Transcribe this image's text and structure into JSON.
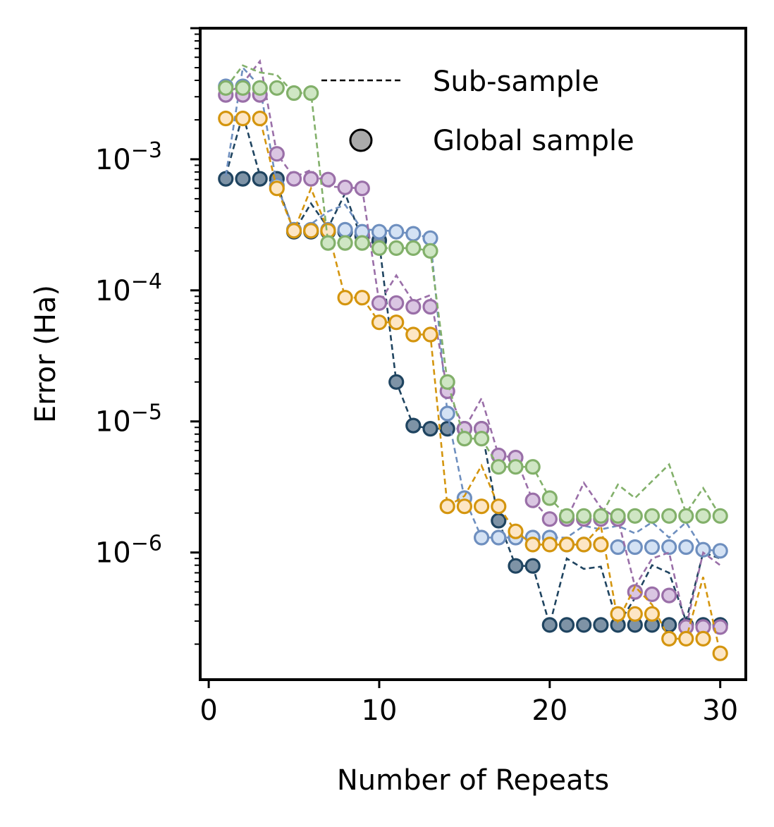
{
  "chart_data": {
    "type": "line",
    "title": "",
    "xlabel": "Number of Repeats",
    "ylabel": "Error (Ha)",
    "xlim": [
      -0.5,
      31.5
    ],
    "ylim_log10": [
      -6.97,
      -2.0
    ],
    "yscale": "log",
    "xticks": [
      0,
      10,
      20,
      30
    ],
    "xtick_labels": [
      "0",
      "10",
      "20",
      "30"
    ],
    "yticks_log10": [
      -6,
      -5,
      -4,
      -3
    ],
    "ytick_labels": [
      {
        "base": "10",
        "exp": "−6"
      },
      {
        "base": "10",
        "exp": "−5"
      },
      {
        "base": "10",
        "exp": "−4"
      },
      {
        "base": "10",
        "exp": "−3"
      }
    ],
    "legend": {
      "position": "top-right",
      "entries": [
        {
          "label": "Sub-sample",
          "style": "dashed-line",
          "color": "#000000"
        },
        {
          "label": "Global sample",
          "style": "marker",
          "color": "#aaaaaa"
        }
      ]
    },
    "x": [
      1,
      2,
      3,
      4,
      5,
      6,
      7,
      8,
      9,
      10,
      11,
      12,
      13,
      14,
      15,
      16,
      17,
      18,
      19,
      20,
      21,
      22,
      23,
      24,
      25,
      26,
      27,
      28,
      29,
      30
    ],
    "series": [
      {
        "name": "dark navy",
        "color": "#1f4460",
        "marker_fill": "#7e93a6",
        "global": [
          0.00071,
          0.00071,
          0.00071,
          0.00071,
          0.00028,
          0.00028,
          0.00028,
          0.00028,
          0.00026,
          0.00024,
          2e-05,
          9.3e-06,
          8.8e-06,
          8.8e-06,
          8.8e-06,
          8.8e-06,
          1.75e-06,
          7.9e-07,
          7.9e-07,
          2.8e-07,
          2.8e-07,
          2.8e-07,
          2.8e-07,
          2.8e-07,
          2.8e-07,
          2.8e-07,
          2.8e-07,
          2.8e-07,
          2.8e-07,
          2.8e-07
        ],
        "sub": [
          0.00075,
          0.0022,
          0.00075,
          0.00065,
          0.00028,
          0.00046,
          0.0003,
          0.00055,
          0.00024,
          0.00023,
          2e-05,
          9.3e-06,
          8.8e-06,
          8.8e-06,
          8.8e-06,
          8.8e-06,
          1.75e-06,
          7.9e-07,
          7.9e-07,
          2.8e-07,
          9e-07,
          7.5e-07,
          7.8e-07,
          2.8e-07,
          4.5e-07,
          8e-07,
          7e-07,
          3e-07,
          1e-06,
          9e-07
        ]
      },
      {
        "name": "light blue",
        "color": "#6e8fbf",
        "marker_fill": "#d4e2f4",
        "global": [
          0.0036,
          0.0036,
          0.0035,
          0.00063,
          0.00029,
          0.00029,
          0.00029,
          0.00029,
          0.00028,
          0.00028,
          0.00028,
          0.00027,
          0.00025,
          1.15e-05,
          2.6e-06,
          1.3e-06,
          1.3e-06,
          1.3e-06,
          1.3e-06,
          1.3e-06,
          1.15e-06,
          1.15e-06,
          1.15e-06,
          1.1e-06,
          1.1e-06,
          1.1e-06,
          1.1e-06,
          1.1e-06,
          1.05e-06,
          1.03e-06
        ],
        "sub": [
          0.00075,
          0.005,
          0.0036,
          0.00063,
          0.00029,
          0.00032,
          0.0004,
          0.00045,
          0.00029,
          0.00029,
          0.00028,
          0.00027,
          0.00025,
          1.15e-05,
          2.6e-06,
          1.3e-06,
          1.3e-06,
          1.3e-06,
          1.3e-06,
          1.3e-06,
          1.3e-06,
          1.6e-06,
          1.5e-06,
          1.6e-06,
          1.4e-06,
          1.7e-06,
          1.3e-06,
          1.7e-06,
          1.05e-06,
          1.03e-06
        ]
      },
      {
        "name": "purple",
        "color": "#9a6fa8",
        "marker_fill": "#dac6e2",
        "global": [
          0.0031,
          0.0031,
          0.0031,
          0.0011,
          0.00071,
          0.00071,
          0.0007,
          0.00061,
          0.0006,
          8e-05,
          8e-05,
          7.5e-05,
          7.5e-05,
          1.7e-05,
          8.8e-06,
          8.8e-06,
          5.5e-06,
          5.3e-06,
          2.5e-06,
          1.8e-06,
          1.8e-06,
          1.8e-06,
          1.8e-06,
          1.8e-06,
          5e-07,
          4.8e-07,
          4.7e-07,
          2.7e-07,
          2.7e-07,
          2.7e-07
        ],
        "sub": [
          0.0031,
          0.0038,
          0.0056,
          0.0011,
          0.00073,
          0.00083,
          0.00062,
          0.00061,
          0.0006,
          8e-05,
          0.00013,
          8.2e-05,
          9.2e-05,
          1.7e-05,
          8.8e-06,
          1.5e-05,
          5.5e-06,
          5.3e-06,
          2.5e-06,
          1.8e-06,
          1.8e-06,
          3.4e-06,
          2.2e-06,
          1.8e-06,
          5.5e-07,
          9e-07,
          1e-06,
          2.7e-07,
          1e-06,
          8e-07
        ]
      },
      {
        "name": "orange",
        "color": "#d4950e",
        "marker_fill": "#fde6c5",
        "global": [
          0.00205,
          0.00205,
          0.00205,
          0.0006,
          0.000285,
          0.000285,
          0.000285,
          8.8e-05,
          8.8e-05,
          5.7e-05,
          5.7e-05,
          4.6e-05,
          4.6e-05,
          2.25e-06,
          2.25e-06,
          2.25e-06,
          2.25e-06,
          1.45e-06,
          1.15e-06,
          1.15e-06,
          1.15e-06,
          1.15e-06,
          1.15e-06,
          3.4e-07,
          3.4e-07,
          3.4e-07,
          2.2e-07,
          2.2e-07,
          2.2e-07,
          1.7e-07
        ],
        "sub": [
          0.00205,
          0.00205,
          0.00205,
          0.0006,
          0.000285,
          0.0006,
          0.000285,
          8.8e-05,
          8.8e-05,
          5.7e-05,
          5.7e-05,
          4.6e-05,
          4.6e-05,
          2.25e-06,
          2.7e-06,
          4.6e-06,
          2.25e-06,
          1.45e-06,
          1.15e-06,
          1.15e-06,
          1.15e-06,
          1.15e-06,
          1.6e-06,
          3e-07,
          5.5e-07,
          4e-07,
          2.2e-07,
          2.2e-07,
          6.5e-07,
          1.7e-07
        ]
      },
      {
        "name": "green",
        "color": "#82b06a",
        "marker_fill": "#cfe6c4",
        "global": [
          0.0035,
          0.0035,
          0.0035,
          0.0035,
          0.0032,
          0.0032,
          0.00023,
          0.00023,
          0.00023,
          0.00021,
          0.00021,
          0.00021,
          0.0002,
          2e-05,
          7.4e-06,
          7.4e-06,
          4.5e-06,
          4.5e-06,
          4.5e-06,
          2.6e-06,
          1.9e-06,
          1.9e-06,
          1.9e-06,
          1.9e-06,
          1.9e-06,
          1.9e-06,
          1.9e-06,
          1.9e-06,
          1.9e-06,
          1.9e-06
        ],
        "sub": [
          0.0035,
          0.0052,
          0.0046,
          0.0044,
          0.0032,
          0.0032,
          0.00023,
          0.00023,
          0.00023,
          0.00021,
          0.00021,
          0.00021,
          0.0002,
          2e-05,
          7.4e-06,
          7.4e-06,
          4.5e-06,
          4.5e-06,
          4.5e-06,
          2.6e-06,
          1.9e-06,
          1.9e-06,
          1.9e-06,
          3.3e-06,
          2.6e-06,
          3.5e-06,
          4.7e-06,
          2e-06,
          3.1e-06,
          1.9e-06
        ]
      }
    ]
  }
}
